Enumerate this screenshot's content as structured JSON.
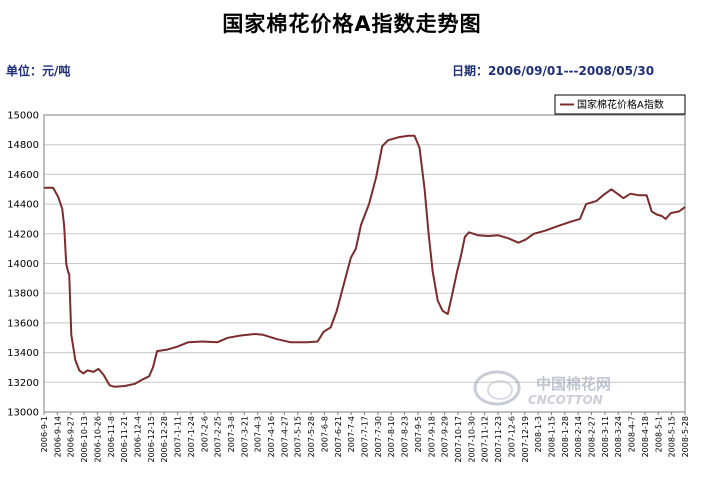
{
  "chart_data": {
    "type": "line",
    "title": "国家棉花价格A指数走势图",
    "unit_label": "单位：元/吨",
    "date_range_label": "日期：2006/09/01---2008/05/30",
    "ylim": [
      13000,
      15000
    ],
    "yticks": [
      "13000",
      "13200",
      "13400",
      "13600",
      "13800",
      "14000",
      "14200",
      "14400",
      "14600",
      "14800",
      "15000"
    ],
    "grid": "horizontal",
    "legend_position": "top-right",
    "color": "#7b2c2c",
    "x_start": "2006-9-1",
    "x_end": "2008-5-28",
    "x_tick_labels": [
      "2006-9-1",
      "2006-9-14",
      "2006-9-27",
      "2006-10-13",
      "2006-10-26",
      "2006-11-8",
      "2006-11-21",
      "2006-12-4",
      "2006-12-15",
      "2006-12-28",
      "2007-1-11",
      "2007-1-24",
      "2007-2-6",
      "2007-2-25",
      "2007-3-8",
      "2007-3-21",
      "2007-4-3",
      "2007-4-16",
      "2007-4-27",
      "2007-5-15",
      "2007-5-28",
      "2007-6-8",
      "2007-6-21",
      "2007-7-4",
      "2007-7-17",
      "2007-7-30",
      "2007-8-10",
      "2007-8-23",
      "2007-9-5",
      "2007-9-18",
      "2007-9-29",
      "2007-10-17",
      "2007-10-30",
      "2007-11-12",
      "2007-11-23",
      "2007-12-6",
      "2007-12-19",
      "2008-1-3",
      "2008-1-15",
      "2008-1-28",
      "2008-2-14",
      "2008-2-27",
      "2008-3-11",
      "2008-3-24",
      "2008-4-7",
      "2008-4-18",
      "2008-5-1",
      "2008-5-15",
      "2008-5-28"
    ],
    "series": [
      {
        "name": "国家棉花价格A指数",
        "points": [
          [
            "2006-9-1",
            14510
          ],
          [
            "2006-9-10",
            14510
          ],
          [
            "2006-9-15",
            14450
          ],
          [
            "2006-9-19",
            14370
          ],
          [
            "2006-9-21",
            14250
          ],
          [
            "2006-9-23",
            14000
          ],
          [
            "2006-9-25",
            13940
          ],
          [
            "2006-9-26",
            13930
          ],
          [
            "2006-9-28",
            13520
          ],
          [
            "2006-10-2",
            13350
          ],
          [
            "2006-10-6",
            13280
          ],
          [
            "2006-10-10",
            13260
          ],
          [
            "2006-10-14",
            13280
          ],
          [
            "2006-10-20",
            13270
          ],
          [
            "2006-10-25",
            13290
          ],
          [
            "2006-10-30",
            13250
          ],
          [
            "2006-11-5",
            13180
          ],
          [
            "2006-11-10",
            13170
          ],
          [
            "2006-11-20",
            13175
          ],
          [
            "2006-11-30",
            13190
          ],
          [
            "2006-12-8",
            13220
          ],
          [
            "2006-12-14",
            13240
          ],
          [
            "2006-12-18",
            13300
          ],
          [
            "2006-12-22",
            13410
          ],
          [
            "2007-1-1",
            13420
          ],
          [
            "2007-1-11",
            13440
          ],
          [
            "2007-1-22",
            13470
          ],
          [
            "2007-2-5",
            13475
          ],
          [
            "2007-2-20",
            13470
          ],
          [
            "2007-3-2",
            13500
          ],
          [
            "2007-3-15",
            13515
          ],
          [
            "2007-3-29",
            13525
          ],
          [
            "2007-4-6",
            13520
          ],
          [
            "2007-4-20",
            13490
          ],
          [
            "2007-5-3",
            13470
          ],
          [
            "2007-5-20",
            13470
          ],
          [
            "2007-5-30",
            13475
          ],
          [
            "2007-6-5",
            13540
          ],
          [
            "2007-6-12",
            13570
          ],
          [
            "2007-6-18",
            13680
          ],
          [
            "2007-6-25",
            13860
          ],
          [
            "2007-7-2",
            14040
          ],
          [
            "2007-7-7",
            14100
          ],
          [
            "2007-7-12",
            14260
          ],
          [
            "2007-7-20",
            14400
          ],
          [
            "2007-7-27",
            14580
          ],
          [
            "2007-8-2",
            14790
          ],
          [
            "2007-8-8",
            14830
          ],
          [
            "2007-8-18",
            14850
          ],
          [
            "2007-8-28",
            14860
          ],
          [
            "2007-9-3",
            14860
          ],
          [
            "2007-9-8",
            14780
          ],
          [
            "2007-9-13",
            14500
          ],
          [
            "2007-9-17",
            14200
          ],
          [
            "2007-9-21",
            13950
          ],
          [
            "2007-9-26",
            13750
          ],
          [
            "2007-10-1",
            13680
          ],
          [
            "2007-10-6",
            13660
          ],
          [
            "2007-10-10",
            13780
          ],
          [
            "2007-10-15",
            13940
          ],
          [
            "2007-10-19",
            14050
          ],
          [
            "2007-10-23",
            14180
          ],
          [
            "2007-10-27",
            14210
          ],
          [
            "2007-11-5",
            14190
          ],
          [
            "2007-11-15",
            14185
          ],
          [
            "2007-11-25",
            14190
          ],
          [
            "2007-12-5",
            14170
          ],
          [
            "2007-12-15",
            14140
          ],
          [
            "2007-12-22",
            14160
          ],
          [
            "2007-12-30",
            14200
          ],
          [
            "2008-1-10",
            14220
          ],
          [
            "2008-1-22",
            14250
          ],
          [
            "2008-2-4",
            14280
          ],
          [
            "2008-2-14",
            14300
          ],
          [
            "2008-2-20",
            14400
          ],
          [
            "2008-3-1",
            14420
          ],
          [
            "2008-3-8",
            14460
          ],
          [
            "2008-3-16",
            14500
          ],
          [
            "2008-3-22",
            14470
          ],
          [
            "2008-3-28",
            14440
          ],
          [
            "2008-4-4",
            14470
          ],
          [
            "2008-4-12",
            14460
          ],
          [
            "2008-4-20",
            14460
          ],
          [
            "2008-4-25",
            14350
          ],
          [
            "2008-4-30",
            14330
          ],
          [
            "2008-5-5",
            14320
          ],
          [
            "2008-5-9",
            14300
          ],
          [
            "2008-5-14",
            14340
          ],
          [
            "2008-5-22",
            14350
          ],
          [
            "2008-5-28",
            14380
          ]
        ]
      }
    ]
  },
  "watermark": {
    "cn": "中国棉花网",
    "en": "CNCOTTON"
  }
}
